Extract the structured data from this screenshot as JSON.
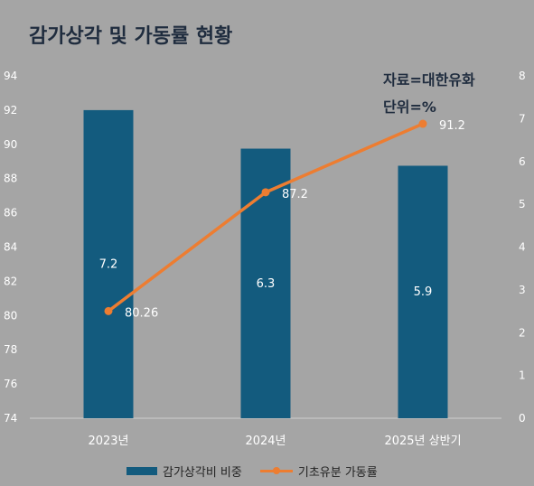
{
  "chart_data": {
    "type": "bar",
    "title": "감가상각 및 가동률 현황",
    "notes": [
      "자료=대한유화",
      "단위=%"
    ],
    "categories": [
      "2023년",
      "2024년",
      "2025년 상반기"
    ],
    "series": [
      {
        "name": "감가상각비 비중",
        "type": "bar",
        "axis": "right",
        "values": [
          7.2,
          6.3,
          5.9
        ],
        "labels": [
          "7.2",
          "6.3",
          "5.9"
        ],
        "color": "#135b7e"
      },
      {
        "name": "기초유분 가동률",
        "type": "line",
        "axis": "left",
        "values": [
          80.26,
          87.2,
          91.2
        ],
        "labels": [
          "80.26",
          "87.2",
          "91.2"
        ],
        "color": "#ed7d31"
      }
    ],
    "y_left": {
      "min": 74,
      "max": 94,
      "step": 2,
      "ticks": [
        "74",
        "76",
        "78",
        "80",
        "82",
        "84",
        "86",
        "88",
        "90",
        "92",
        "94"
      ]
    },
    "y_right": {
      "min": 0,
      "max": 8,
      "step": 1,
      "ticks": [
        "0",
        "1",
        "2",
        "3",
        "4",
        "5",
        "6",
        "7",
        "8"
      ]
    },
    "grid": false,
    "legend": "bottom"
  }
}
